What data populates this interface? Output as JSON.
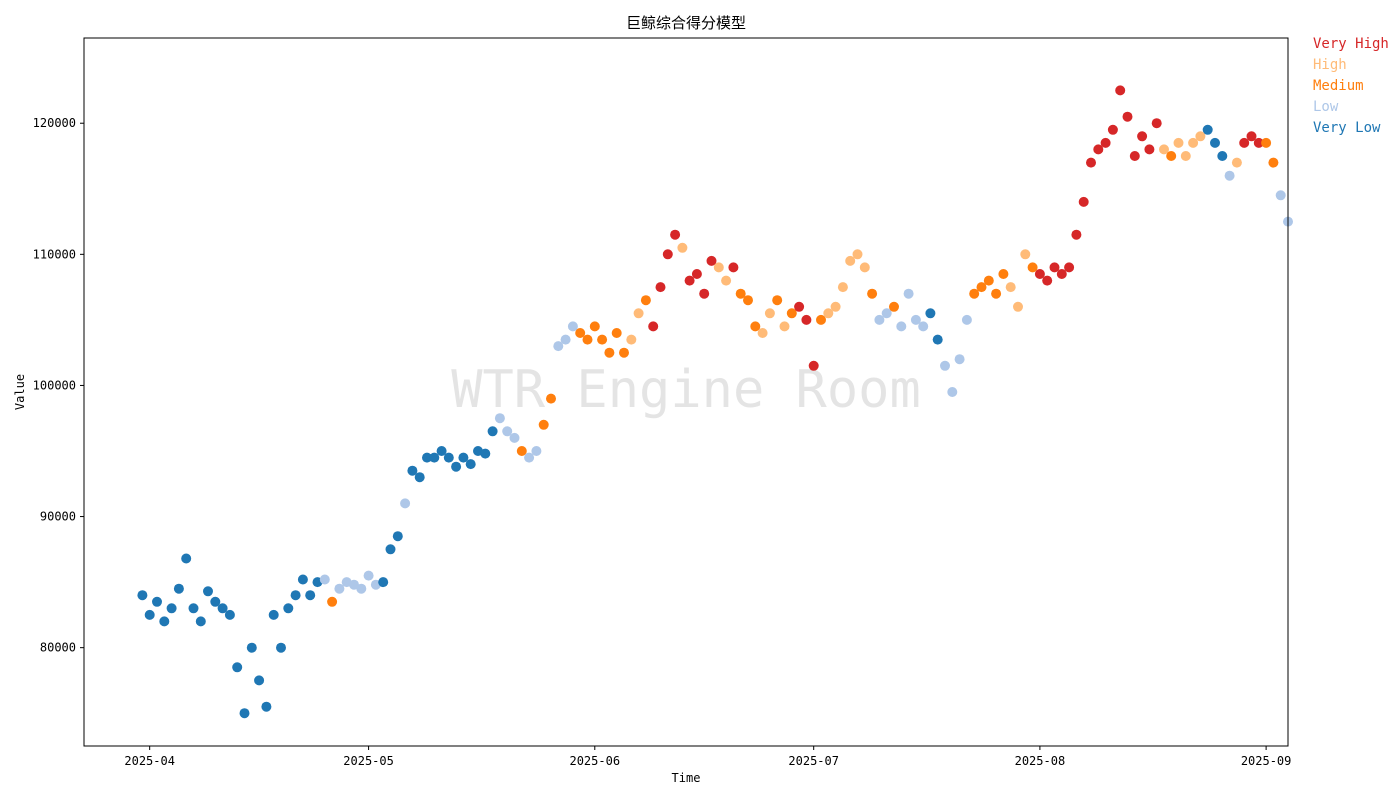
{
  "chart_data": {
    "type": "scatter",
    "title": "巨鲸综合得分模型",
    "xlabel": "Time",
    "ylabel": "Value",
    "watermark": "WTR Engine Room",
    "x_range": [
      "2025-03-23",
      "2025-09-04"
    ],
    "ylim": [
      72500,
      126500
    ],
    "x_ticks": [
      "2025-04-01",
      "2025-05-01",
      "2025-06-01",
      "2025-07-01",
      "2025-08-01",
      "2025-09-01"
    ],
    "x_tick_labels": [
      "2025-04",
      "2025-05",
      "2025-06",
      "2025-07",
      "2025-08",
      "2025-09"
    ],
    "y_ticks": [
      80000,
      90000,
      100000,
      110000,
      120000
    ],
    "y_tick_labels": [
      "80000",
      "90000",
      "100000",
      "110000",
      "120000"
    ],
    "grid": false,
    "legend_position": "right, outside plot",
    "legend": [
      {
        "name": "Very High",
        "color": "#d62728"
      },
      {
        "name": "High",
        "color": "#ffbb78"
      },
      {
        "name": "Medium",
        "color": "#ff7f0e"
      },
      {
        "name": "Low",
        "color": "#aec7e8"
      },
      {
        "name": "Very Low",
        "color": "#1f77b4"
      }
    ],
    "points": [
      {
        "x": "2025-03-31",
        "y": 84000,
        "c": "Very Low"
      },
      {
        "x": "2025-04-01",
        "y": 82500,
        "c": "Very Low"
      },
      {
        "x": "2025-04-02",
        "y": 83500,
        "c": "Very Low"
      },
      {
        "x": "2025-04-03",
        "y": 82000,
        "c": "Very Low"
      },
      {
        "x": "2025-04-04",
        "y": 83000,
        "c": "Very Low"
      },
      {
        "x": "2025-04-05",
        "y": 84500,
        "c": "Very Low"
      },
      {
        "x": "2025-04-06",
        "y": 86800,
        "c": "Very Low"
      },
      {
        "x": "2025-04-07",
        "y": 83000,
        "c": "Very Low"
      },
      {
        "x": "2025-04-08",
        "y": 82000,
        "c": "Very Low"
      },
      {
        "x": "2025-04-09",
        "y": 84300,
        "c": "Very Low"
      },
      {
        "x": "2025-04-10",
        "y": 83500,
        "c": "Very Low"
      },
      {
        "x": "2025-04-11",
        "y": 83000,
        "c": "Very Low"
      },
      {
        "x": "2025-04-12",
        "y": 82500,
        "c": "Very Low"
      },
      {
        "x": "2025-04-13",
        "y": 78500,
        "c": "Very Low"
      },
      {
        "x": "2025-04-14",
        "y": 75000,
        "c": "Very Low"
      },
      {
        "x": "2025-04-15",
        "y": 80000,
        "c": "Very Low"
      },
      {
        "x": "2025-04-16",
        "y": 77500,
        "c": "Very Low"
      },
      {
        "x": "2025-04-17",
        "y": 75500,
        "c": "Very Low"
      },
      {
        "x": "2025-04-18",
        "y": 82500,
        "c": "Very Low"
      },
      {
        "x": "2025-04-19",
        "y": 80000,
        "c": "Very Low"
      },
      {
        "x": "2025-04-20",
        "y": 83000,
        "c": "Very Low"
      },
      {
        "x": "2025-04-21",
        "y": 84000,
        "c": "Very Low"
      },
      {
        "x": "2025-04-22",
        "y": 85200,
        "c": "Very Low"
      },
      {
        "x": "2025-04-23",
        "y": 84000,
        "c": "Very Low"
      },
      {
        "x": "2025-04-24",
        "y": 85000,
        "c": "Very Low"
      },
      {
        "x": "2025-04-25",
        "y": 85200,
        "c": "Low"
      },
      {
        "x": "2025-04-26",
        "y": 83500,
        "c": "Medium"
      },
      {
        "x": "2025-04-27",
        "y": 84500,
        "c": "Low"
      },
      {
        "x": "2025-04-28",
        "y": 85000,
        "c": "Low"
      },
      {
        "x": "2025-04-29",
        "y": 84800,
        "c": "Low"
      },
      {
        "x": "2025-04-30",
        "y": 84500,
        "c": "Low"
      },
      {
        "x": "2025-05-01",
        "y": 85500,
        "c": "Low"
      },
      {
        "x": "2025-05-02",
        "y": 84800,
        "c": "Low"
      },
      {
        "x": "2025-05-03",
        "y": 85000,
        "c": "Very Low"
      },
      {
        "x": "2025-05-04",
        "y": 87500,
        "c": "Very Low"
      },
      {
        "x": "2025-05-05",
        "y": 88500,
        "c": "Very Low"
      },
      {
        "x": "2025-05-06",
        "y": 91000,
        "c": "Low"
      },
      {
        "x": "2025-05-07",
        "y": 93500,
        "c": "Very Low"
      },
      {
        "x": "2025-05-08",
        "y": 93000,
        "c": "Very Low"
      },
      {
        "x": "2025-05-09",
        "y": 94500,
        "c": "Very Low"
      },
      {
        "x": "2025-05-10",
        "y": 94500,
        "c": "Very Low"
      },
      {
        "x": "2025-05-11",
        "y": 95000,
        "c": "Very Low"
      },
      {
        "x": "2025-05-12",
        "y": 94500,
        "c": "Very Low"
      },
      {
        "x": "2025-05-13",
        "y": 93800,
        "c": "Very Low"
      },
      {
        "x": "2025-05-14",
        "y": 94500,
        "c": "Very Low"
      },
      {
        "x": "2025-05-15",
        "y": 94000,
        "c": "Very Low"
      },
      {
        "x": "2025-05-16",
        "y": 95000,
        "c": "Very Low"
      },
      {
        "x": "2025-05-17",
        "y": 94800,
        "c": "Very Low"
      },
      {
        "x": "2025-05-18",
        "y": 96500,
        "c": "Very Low"
      },
      {
        "x": "2025-05-19",
        "y": 97500,
        "c": "Low"
      },
      {
        "x": "2025-05-20",
        "y": 96500,
        "c": "Low"
      },
      {
        "x": "2025-05-21",
        "y": 96000,
        "c": "Low"
      },
      {
        "x": "2025-05-22",
        "y": 95000,
        "c": "Medium"
      },
      {
        "x": "2025-05-23",
        "y": 94500,
        "c": "Low"
      },
      {
        "x": "2025-05-24",
        "y": 95000,
        "c": "Low"
      },
      {
        "x": "2025-05-25",
        "y": 97000,
        "c": "Medium"
      },
      {
        "x": "2025-05-26",
        "y": 99000,
        "c": "Medium"
      },
      {
        "x": "2025-05-27",
        "y": 103000,
        "c": "Low"
      },
      {
        "x": "2025-05-28",
        "y": 103500,
        "c": "Low"
      },
      {
        "x": "2025-05-29",
        "y": 104500,
        "c": "Low"
      },
      {
        "x": "2025-05-30",
        "y": 104000,
        "c": "Medium"
      },
      {
        "x": "2025-05-31",
        "y": 103500,
        "c": "Medium"
      },
      {
        "x": "2025-06-01",
        "y": 104500,
        "c": "Medium"
      },
      {
        "x": "2025-06-02",
        "y": 103500,
        "c": "Medium"
      },
      {
        "x": "2025-06-03",
        "y": 102500,
        "c": "Medium"
      },
      {
        "x": "2025-06-04",
        "y": 104000,
        "c": "Medium"
      },
      {
        "x": "2025-06-05",
        "y": 102500,
        "c": "Medium"
      },
      {
        "x": "2025-06-06",
        "y": 103500,
        "c": "High"
      },
      {
        "x": "2025-06-07",
        "y": 105500,
        "c": "High"
      },
      {
        "x": "2025-06-08",
        "y": 106500,
        "c": "Medium"
      },
      {
        "x": "2025-06-09",
        "y": 104500,
        "c": "Very High"
      },
      {
        "x": "2025-06-10",
        "y": 107500,
        "c": "Very High"
      },
      {
        "x": "2025-06-11",
        "y": 110000,
        "c": "Very High"
      },
      {
        "x": "2025-06-12",
        "y": 111500,
        "c": "Very High"
      },
      {
        "x": "2025-06-13",
        "y": 110500,
        "c": "High"
      },
      {
        "x": "2025-06-14",
        "y": 108000,
        "c": "Very High"
      },
      {
        "x": "2025-06-15",
        "y": 108500,
        "c": "Very High"
      },
      {
        "x": "2025-06-16",
        "y": 107000,
        "c": "Very High"
      },
      {
        "x": "2025-06-17",
        "y": 109500,
        "c": "Very High"
      },
      {
        "x": "2025-06-18",
        "y": 109000,
        "c": "High"
      },
      {
        "x": "2025-06-19",
        "y": 108000,
        "c": "High"
      },
      {
        "x": "2025-06-20",
        "y": 109000,
        "c": "Very High"
      },
      {
        "x": "2025-06-21",
        "y": 107000,
        "c": "Medium"
      },
      {
        "x": "2025-06-22",
        "y": 106500,
        "c": "Medium"
      },
      {
        "x": "2025-06-23",
        "y": 104500,
        "c": "Medium"
      },
      {
        "x": "2025-06-24",
        "y": 104000,
        "c": "High"
      },
      {
        "x": "2025-06-25",
        "y": 105500,
        "c": "High"
      },
      {
        "x": "2025-06-26",
        "y": 106500,
        "c": "Medium"
      },
      {
        "x": "2025-06-27",
        "y": 104500,
        "c": "High"
      },
      {
        "x": "2025-06-28",
        "y": 105500,
        "c": "Medium"
      },
      {
        "x": "2025-06-29",
        "y": 106000,
        "c": "Very High"
      },
      {
        "x": "2025-06-30",
        "y": 105000,
        "c": "Very High"
      },
      {
        "x": "2025-07-01",
        "y": 101500,
        "c": "Very High"
      },
      {
        "x": "2025-07-02",
        "y": 105000,
        "c": "Medium"
      },
      {
        "x": "2025-07-03",
        "y": 105500,
        "c": "High"
      },
      {
        "x": "2025-07-04",
        "y": 106000,
        "c": "High"
      },
      {
        "x": "2025-07-05",
        "y": 107500,
        "c": "High"
      },
      {
        "x": "2025-07-06",
        "y": 109500,
        "c": "High"
      },
      {
        "x": "2025-07-07",
        "y": 110000,
        "c": "High"
      },
      {
        "x": "2025-07-08",
        "y": 109000,
        "c": "High"
      },
      {
        "x": "2025-07-09",
        "y": 107000,
        "c": "Medium"
      },
      {
        "x": "2025-07-10",
        "y": 105000,
        "c": "Low"
      },
      {
        "x": "2025-07-11",
        "y": 105500,
        "c": "Low"
      },
      {
        "x": "2025-07-12",
        "y": 106000,
        "c": "Medium"
      },
      {
        "x": "2025-07-13",
        "y": 104500,
        "c": "Low"
      },
      {
        "x": "2025-07-14",
        "y": 107000,
        "c": "Low"
      },
      {
        "x": "2025-07-15",
        "y": 105000,
        "c": "Low"
      },
      {
        "x": "2025-07-16",
        "y": 104500,
        "c": "Low"
      },
      {
        "x": "2025-07-17",
        "y": 105500,
        "c": "Very Low"
      },
      {
        "x": "2025-07-18",
        "y": 103500,
        "c": "Very Low"
      },
      {
        "x": "2025-07-19",
        "y": 101500,
        "c": "Low"
      },
      {
        "x": "2025-07-20",
        "y": 99500,
        "c": "Low"
      },
      {
        "x": "2025-07-21",
        "y": 102000,
        "c": "Low"
      },
      {
        "x": "2025-07-22",
        "y": 105000,
        "c": "Low"
      },
      {
        "x": "2025-07-23",
        "y": 107000,
        "c": "Medium"
      },
      {
        "x": "2025-07-24",
        "y": 107500,
        "c": "Medium"
      },
      {
        "x": "2025-07-25",
        "y": 108000,
        "c": "Medium"
      },
      {
        "x": "2025-07-26",
        "y": 107000,
        "c": "Medium"
      },
      {
        "x": "2025-07-27",
        "y": 108500,
        "c": "Medium"
      },
      {
        "x": "2025-07-28",
        "y": 107500,
        "c": "High"
      },
      {
        "x": "2025-07-29",
        "y": 106000,
        "c": "High"
      },
      {
        "x": "2025-07-30",
        "y": 110000,
        "c": "High"
      },
      {
        "x": "2025-07-31",
        "y": 109000,
        "c": "Medium"
      },
      {
        "x": "2025-08-01",
        "y": 108500,
        "c": "Very High"
      },
      {
        "x": "2025-08-02",
        "y": 108000,
        "c": "Very High"
      },
      {
        "x": "2025-08-03",
        "y": 109000,
        "c": "Very High"
      },
      {
        "x": "2025-08-04",
        "y": 108500,
        "c": "Very High"
      },
      {
        "x": "2025-08-05",
        "y": 109000,
        "c": "Very High"
      },
      {
        "x": "2025-08-06",
        "y": 111500,
        "c": "Very High"
      },
      {
        "x": "2025-08-07",
        "y": 114000,
        "c": "Very High"
      },
      {
        "x": "2025-08-08",
        "y": 117000,
        "c": "Very High"
      },
      {
        "x": "2025-08-09",
        "y": 118000,
        "c": "Very High"
      },
      {
        "x": "2025-08-10",
        "y": 118500,
        "c": "Very High"
      },
      {
        "x": "2025-08-11",
        "y": 119500,
        "c": "Very High"
      },
      {
        "x": "2025-08-12",
        "y": 122500,
        "c": "Very High"
      },
      {
        "x": "2025-08-13",
        "y": 120500,
        "c": "Very High"
      },
      {
        "x": "2025-08-14",
        "y": 117500,
        "c": "Very High"
      },
      {
        "x": "2025-08-15",
        "y": 119000,
        "c": "Very High"
      },
      {
        "x": "2025-08-16",
        "y": 118000,
        "c": "Very High"
      },
      {
        "x": "2025-08-17",
        "y": 120000,
        "c": "Very High"
      },
      {
        "x": "2025-08-18",
        "y": 118000,
        "c": "High"
      },
      {
        "x": "2025-08-19",
        "y": 117500,
        "c": "Medium"
      },
      {
        "x": "2025-08-20",
        "y": 118500,
        "c": "High"
      },
      {
        "x": "2025-08-21",
        "y": 117500,
        "c": "High"
      },
      {
        "x": "2025-08-22",
        "y": 118500,
        "c": "High"
      },
      {
        "x": "2025-08-23",
        "y": 119000,
        "c": "High"
      },
      {
        "x": "2025-08-24",
        "y": 119500,
        "c": "Very Low"
      },
      {
        "x": "2025-08-25",
        "y": 118500,
        "c": "Very Low"
      },
      {
        "x": "2025-08-26",
        "y": 117500,
        "c": "Very Low"
      },
      {
        "x": "2025-08-27",
        "y": 116000,
        "c": "Low"
      },
      {
        "x": "2025-08-28",
        "y": 117000,
        "c": "High"
      },
      {
        "x": "2025-08-29",
        "y": 118500,
        "c": "Very High"
      },
      {
        "x": "2025-08-30",
        "y": 119000,
        "c": "Very High"
      },
      {
        "x": "2025-08-31",
        "y": 118500,
        "c": "Very High"
      },
      {
        "x": "2025-09-01",
        "y": 118500,
        "c": "Medium"
      },
      {
        "x": "2025-09-02",
        "y": 117000,
        "c": "Medium"
      },
      {
        "x": "2025-09-03",
        "y": 114500,
        "c": "Low"
      },
      {
        "x": "2025-09-04",
        "y": 112500,
        "c": "Low"
      }
    ]
  }
}
